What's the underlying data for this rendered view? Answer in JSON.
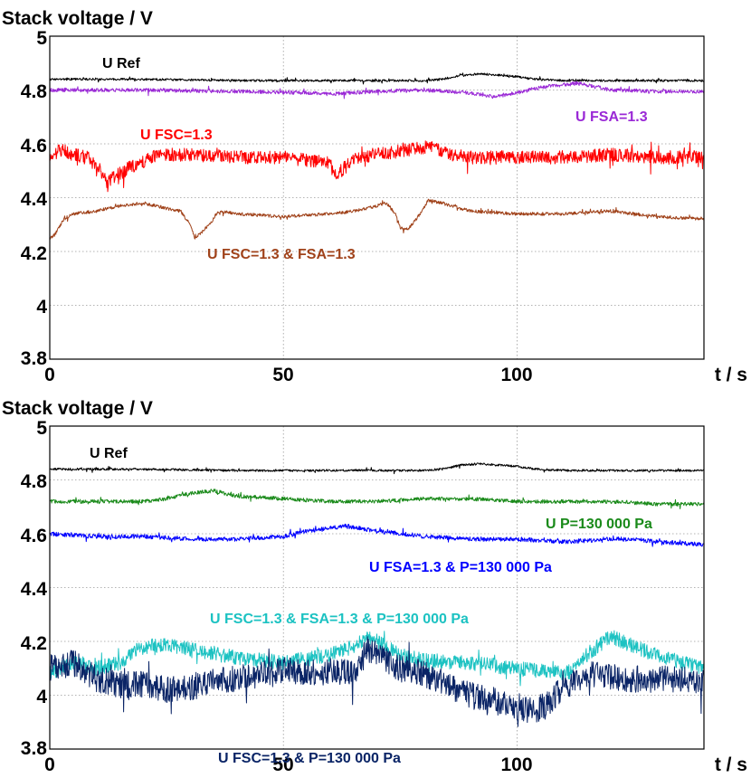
{
  "chart_data": [
    {
      "type": "line",
      "ylabel": "Stack voltage / V",
      "xlabel": "t / s",
      "xlim": [
        0,
        140
      ],
      "ylim": [
        3.8,
        5.0
      ],
      "x_ticks": [
        "0",
        "50",
        "100"
      ],
      "y_ticks": [
        "3.8",
        "4",
        "4.2",
        "4.4",
        "4.6",
        "4.8",
        "5"
      ],
      "grid": true,
      "series": [
        {
          "name": "U Ref",
          "color": "#000000",
          "noise": 0.004,
          "spike": 0.01,
          "x": [
            0,
            20,
            40,
            60,
            80,
            84,
            88,
            92,
            96,
            100,
            104,
            110,
            120,
            130,
            140
          ],
          "y": [
            4.84,
            4.84,
            4.835,
            4.835,
            4.835,
            4.84,
            4.855,
            4.86,
            4.855,
            4.85,
            4.84,
            4.835,
            4.835,
            4.835,
            4.835
          ]
        },
        {
          "name": "U FSA=1.3",
          "color": "#9a29d6",
          "noise": 0.007,
          "spike": 0.015,
          "x": [
            0,
            20,
            40,
            55,
            60,
            70,
            80,
            90,
            95,
            100,
            105,
            113,
            120,
            130,
            140
          ],
          "y": [
            4.8,
            4.8,
            4.795,
            4.79,
            4.785,
            4.795,
            4.8,
            4.79,
            4.775,
            4.79,
            4.81,
            4.825,
            4.8,
            4.795,
            4.795
          ]
        },
        {
          "name": "U FSC=1.3",
          "color": "#ff0000",
          "noise": 0.025,
          "spike": 0.05,
          "x": [
            0,
            2,
            5,
            8,
            11,
            12,
            14,
            18,
            22,
            25,
            30,
            40,
            50,
            55,
            60,
            61,
            65,
            70,
            78,
            82,
            86,
            90,
            100,
            110,
            120,
            130,
            140
          ],
          "y": [
            4.53,
            4.58,
            4.56,
            4.55,
            4.5,
            4.46,
            4.48,
            4.52,
            4.55,
            4.56,
            4.56,
            4.55,
            4.55,
            4.54,
            4.53,
            4.48,
            4.54,
            4.56,
            4.58,
            4.59,
            4.56,
            4.55,
            4.55,
            4.55,
            4.56,
            4.55,
            4.55
          ]
        },
        {
          "name": "U FSC=1.3 & FSA=1.3",
          "color": "#a0421a",
          "noise": 0.006,
          "spike": 0.012,
          "x": [
            0,
            1,
            3,
            5,
            10,
            15,
            20,
            25,
            28,
            30,
            31,
            33,
            35,
            36,
            40,
            50,
            60,
            65,
            70,
            72,
            74,
            75,
            76,
            77,
            78,
            80,
            81,
            84,
            90,
            100,
            110,
            120,
            130,
            140
          ],
          "y": [
            4.25,
            4.26,
            4.32,
            4.34,
            4.35,
            4.37,
            4.38,
            4.36,
            4.35,
            4.3,
            4.25,
            4.28,
            4.32,
            4.35,
            4.34,
            4.33,
            4.34,
            4.35,
            4.37,
            4.38,
            4.34,
            4.29,
            4.28,
            4.29,
            4.31,
            4.36,
            4.39,
            4.38,
            4.35,
            4.34,
            4.34,
            4.35,
            4.33,
            4.32
          ]
        }
      ],
      "series_labels": [
        "U Ref",
        "U FSA=1.3",
        "U FSC=1.3",
        "U FSC=1.3 & FSA=1.3"
      ]
    },
    {
      "type": "line",
      "ylabel": "Stack voltage / V",
      "xlabel": "t / s",
      "xlim": [
        0,
        140
      ],
      "ylim": [
        3.8,
        5.0
      ],
      "x_ticks": [
        "0",
        "50",
        "100"
      ],
      "y_ticks": [
        "3.8",
        "4",
        "4.2",
        "4.4",
        "4.6",
        "4.8",
        "5"
      ],
      "grid": true,
      "series": [
        {
          "name": "U Ref",
          "color": "#000000",
          "noise": 0.004,
          "spike": 0.01,
          "x": [
            0,
            20,
            40,
            60,
            80,
            84,
            88,
            92,
            96,
            100,
            104,
            110,
            120,
            130,
            140
          ],
          "y": [
            4.84,
            4.84,
            4.835,
            4.835,
            4.835,
            4.84,
            4.855,
            4.86,
            4.855,
            4.85,
            4.84,
            4.835,
            4.835,
            4.835,
            4.835
          ]
        },
        {
          "name": "U P=130 000 Pa",
          "color": "#1a8a1a",
          "noise": 0.007,
          "spike": 0.012,
          "x": [
            0,
            10,
            20,
            25,
            30,
            35,
            40,
            50,
            60,
            70,
            80,
            90,
            100,
            110,
            120,
            130,
            140
          ],
          "y": [
            4.72,
            4.72,
            4.72,
            4.73,
            4.75,
            4.76,
            4.74,
            4.73,
            4.72,
            4.72,
            4.73,
            4.73,
            4.72,
            4.72,
            4.72,
            4.71,
            4.71
          ]
        },
        {
          "name": "U FSA=1.3 & P=130 000 Pa",
          "color": "#0000ff",
          "noise": 0.008,
          "spike": 0.018,
          "x": [
            0,
            10,
            20,
            30,
            40,
            50,
            55,
            60,
            63,
            70,
            80,
            90,
            100,
            110,
            120,
            125,
            130,
            140
          ],
          "y": [
            4.6,
            4.59,
            4.59,
            4.58,
            4.58,
            4.59,
            4.61,
            4.62,
            4.63,
            4.61,
            4.59,
            4.58,
            4.58,
            4.57,
            4.58,
            4.58,
            4.57,
            4.56
          ]
        },
        {
          "name": "U FSC=1.3 & FSA=1.3 & P=130 000 Pa",
          "color": "#1cc2c2",
          "noise": 0.028,
          "spike": 0.05,
          "x": [
            0,
            5,
            10,
            15,
            20,
            25,
            30,
            40,
            50,
            60,
            65,
            68,
            70,
            75,
            80,
            90,
            100,
            110,
            112,
            115,
            120,
            125,
            130,
            135,
            140
          ],
          "y": [
            4.08,
            4.12,
            4.1,
            4.12,
            4.18,
            4.19,
            4.17,
            4.14,
            4.12,
            4.15,
            4.18,
            4.21,
            4.2,
            4.15,
            4.13,
            4.12,
            4.1,
            4.08,
            4.09,
            4.15,
            4.22,
            4.18,
            4.15,
            4.12,
            4.1
          ]
        },
        {
          "name": "U FSC=1.3 & P=130 000 Pa",
          "color": "#0a2466",
          "noise": 0.05,
          "spike": 0.09,
          "x": [
            0,
            5,
            10,
            15,
            20,
            25,
            30,
            35,
            40,
            45,
            50,
            55,
            60,
            65,
            68,
            70,
            75,
            80,
            85,
            90,
            95,
            100,
            103,
            106,
            110,
            115,
            120,
            125,
            130,
            135,
            140
          ],
          "y": [
            4.1,
            4.12,
            4.06,
            4.04,
            4.04,
            4.02,
            4.03,
            4.05,
            4.06,
            4.08,
            4.1,
            4.08,
            4.09,
            4.08,
            4.17,
            4.15,
            4.1,
            4.08,
            4.04,
            4.0,
            3.98,
            3.95,
            3.94,
            3.96,
            4.03,
            4.08,
            4.07,
            4.06,
            4.06,
            4.06,
            4.05
          ]
        }
      ],
      "series_labels": [
        "U Ref",
        "U P=130 000 Pa",
        "U FSA=1.3 & P=130 000 Pa",
        "U FSC=1.3 & FSA=1.3 & P=130 000 Pa",
        "U FSC=1.3 & P=130 000 Pa"
      ]
    }
  ]
}
